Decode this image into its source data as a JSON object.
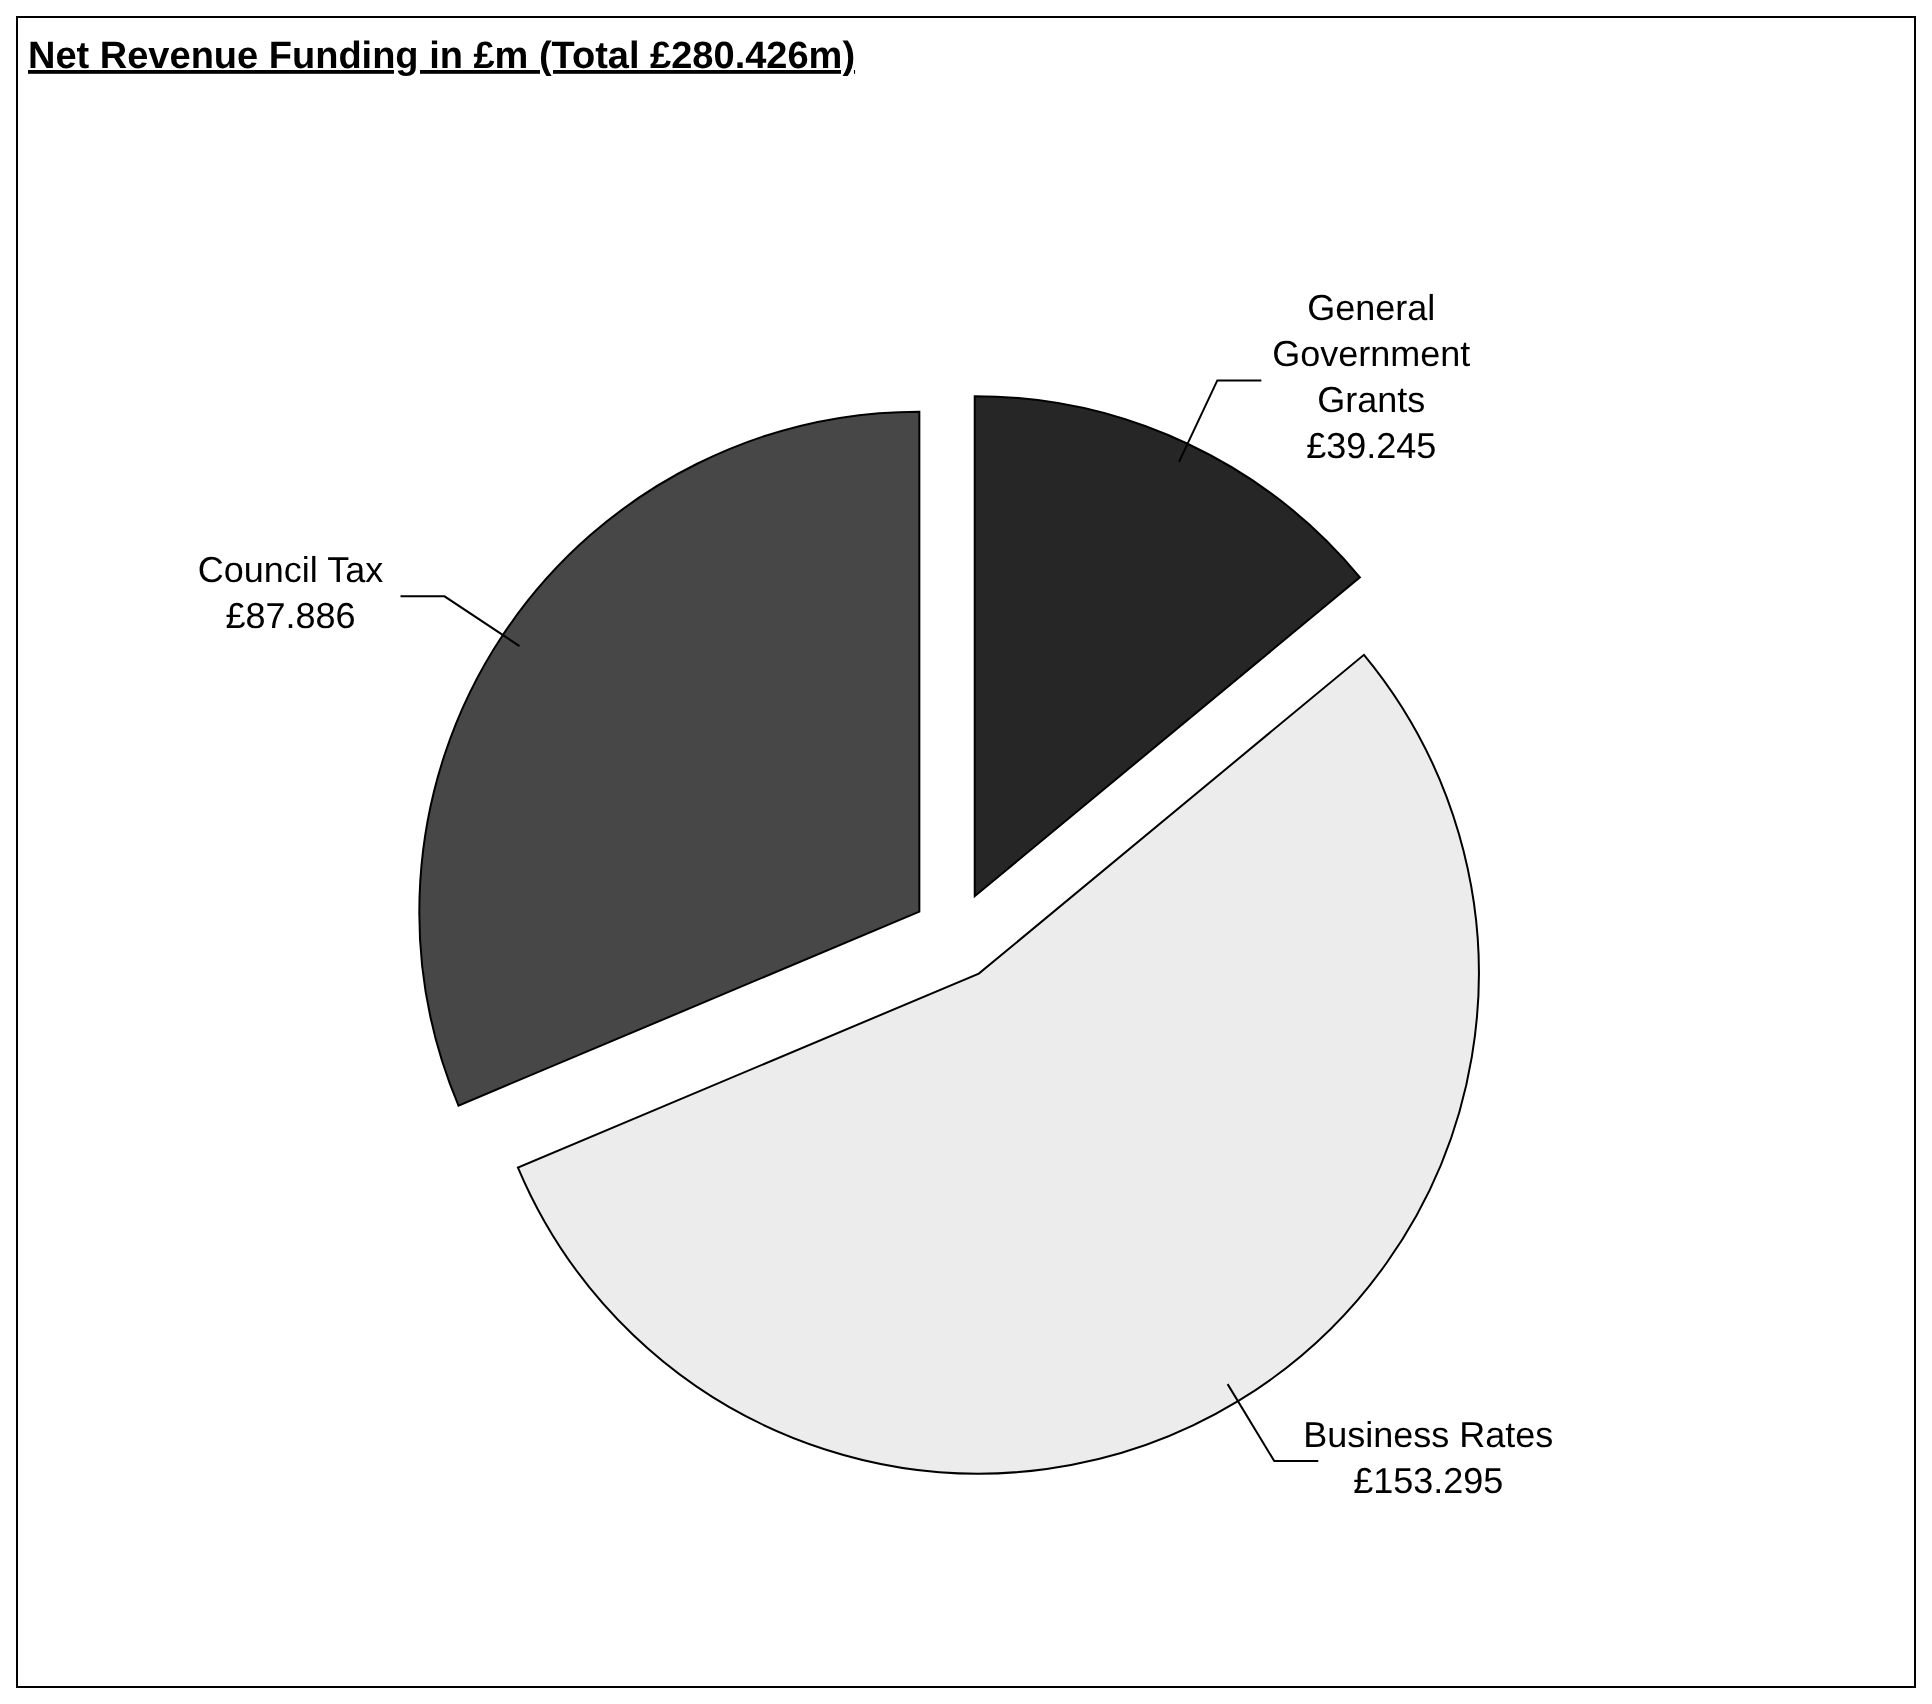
{
  "chart_data": {
    "type": "pie",
    "title": "Net Revenue Funding in £m (Total £280.426m)",
    "categories": [
      "General Government Grants",
      "Business Rates",
      "Council Tax"
    ],
    "values": [
      39.245,
      153.295,
      87.886
    ],
    "colors": [
      "#262626",
      "#ececec",
      "#474747"
    ],
    "value_labels": [
      "£39.245",
      "£153.295",
      "£87.886"
    ]
  }
}
